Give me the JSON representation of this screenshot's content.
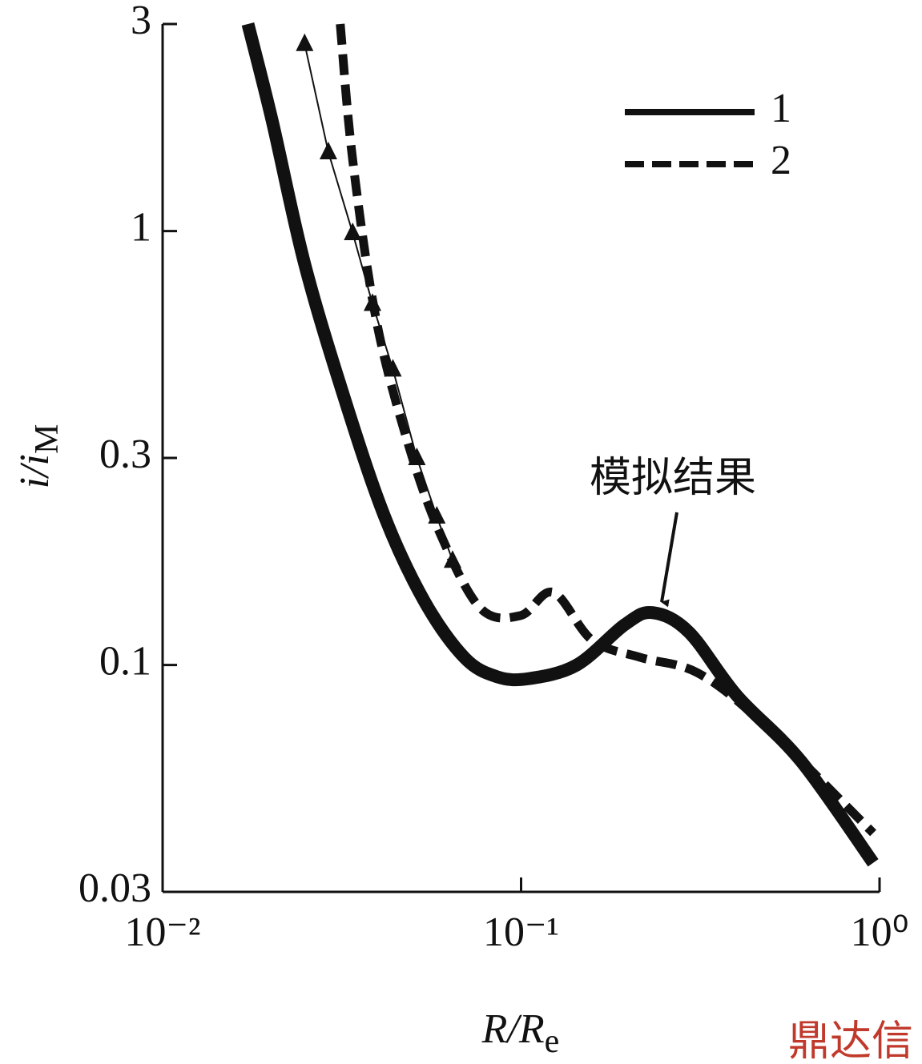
{
  "chart_data": {
    "type": "line",
    "x_label": {
      "text": "R/R",
      "sub": "e"
    },
    "y_label": {
      "text": "i/i",
      "sub": "M"
    },
    "xscale": "log",
    "yscale": "log",
    "xlim": [
      0.01,
      1
    ],
    "ylim": [
      0.03,
      3
    ],
    "xticks": [
      {
        "value": 0.01,
        "label": "10⁻²"
      },
      {
        "value": 0.1,
        "label": "10⁻¹"
      },
      {
        "value": 1,
        "label": "10⁰"
      }
    ],
    "yticks": [
      3,
      1,
      0.3,
      0.1,
      0.03
    ],
    "legend": "top-right",
    "annotation": "模拟结果",
    "watermark": "鼎达信",
    "series": [
      {
        "name": "1",
        "color": "#111111",
        "style": "solid",
        "x": [
          0.0173,
          0.0202,
          0.0249,
          0.0322,
          0.0416,
          0.0538,
          0.0695,
          0.0855,
          0.105,
          0.143,
          0.195,
          0.233,
          0.294,
          0.4,
          0.604,
          0.96
        ],
        "values": [
          3,
          1.8,
          0.84,
          0.41,
          0.22,
          0.14,
          0.104,
          0.094,
          0.093,
          0.1,
          0.124,
          0.132,
          0.119,
          0.085,
          0.06,
          0.035
        ]
      },
      {
        "name": "2",
        "color": "#111111",
        "style": "dashed",
        "x": [
          0.0313,
          0.0339,
          0.0395,
          0.0486,
          0.0596,
          0.0771,
          0.0997,
          0.123,
          0.158,
          0.216,
          0.31,
          0.467,
          0.96
        ],
        "values": [
          3,
          1.46,
          0.62,
          0.32,
          0.2,
          0.135,
          0.13,
          0.147,
          0.114,
          0.104,
          0.096,
          0.074,
          0.041
        ]
      },
      {
        "color": "#111111",
        "style": "markers",
        "x": [
          0.0249,
          0.029,
          0.0339,
          0.0385,
          0.0439,
          0.0512,
          0.0582,
          0.0644
        ],
        "values": [
          2.7,
          1.52,
          0.99,
          0.68,
          0.48,
          0.3,
          0.22,
          0.174
        ]
      }
    ]
  }
}
